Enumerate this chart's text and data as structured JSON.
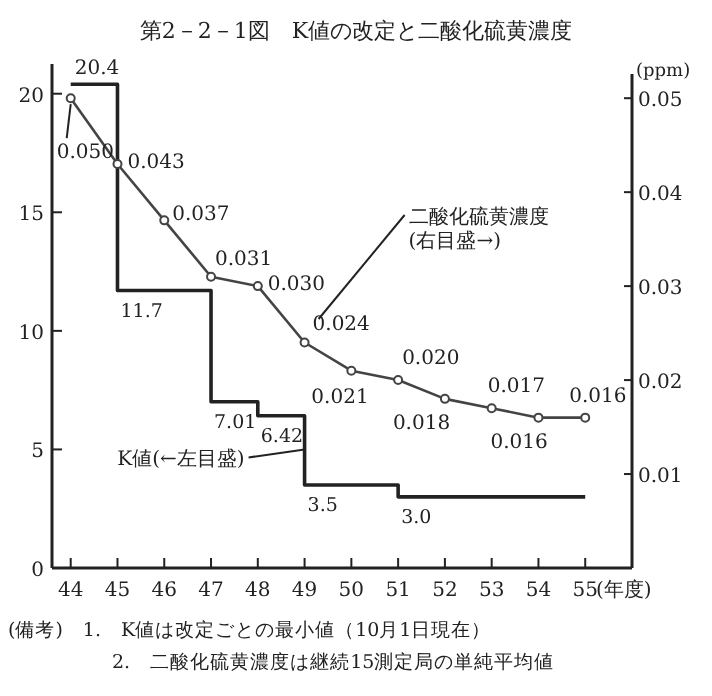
{
  "chart_data": {
    "type": "line",
    "title": "第2－2－1図　K値の改定と二酸化硫黄濃度",
    "xlabel": "(年度)",
    "y2label": "(ppm)",
    "xlim": [
      43.6,
      56.0
    ],
    "xticks": [
      44,
      45,
      46,
      47,
      48,
      49,
      50,
      51,
      52,
      53,
      54,
      55
    ],
    "ylim": [
      0,
      21
    ],
    "yticks": [
      0,
      5,
      10,
      15,
      20
    ],
    "y2lim": [
      0,
      0.053
    ],
    "y2ticks": [
      0.01,
      0.02,
      0.03,
      0.04,
      0.05
    ],
    "grid": false,
    "series": [
      {
        "type": "step",
        "color": "#222222",
        "marker": "none",
        "x": [
          44,
          45,
          47,
          48,
          49,
          51,
          55
        ],
        "values": [
          20.4,
          11.7,
          7.01,
          6.42,
          3.5,
          3.0,
          3.0
        ],
        "value_labels": [
          "20.4",
          "11.7",
          "7.01",
          "6.42",
          "3.5",
          "3.0",
          null
        ]
      },
      {
        "axis": "y2",
        "color": "#444444",
        "marker": "circle",
        "x": [
          44,
          45,
          46,
          47,
          48,
          49,
          50,
          51,
          52,
          53,
          54,
          55
        ],
        "values": [
          0.05,
          0.043,
          0.037,
          0.031,
          0.03,
          0.024,
          0.021,
          0.02,
          0.018,
          0.017,
          0.016,
          0.016
        ],
        "value_labels": [
          "0.050",
          "0.043",
          "0.037",
          "0.031",
          "0.030",
          "0.024",
          "0.021",
          "0.020",
          "0.018",
          "0.017",
          "0.016",
          "0.016"
        ]
      }
    ],
    "annotations": [
      "K値(←左目盛)",
      "二酸化硫黄濃度\n(右目盛→)",
      "(備考)　1.　K値は改定ごとの最小値（10月1日現在）",
      "2.　二酸化硫黄濃度は継続15測定局の単純平均値"
    ]
  }
}
